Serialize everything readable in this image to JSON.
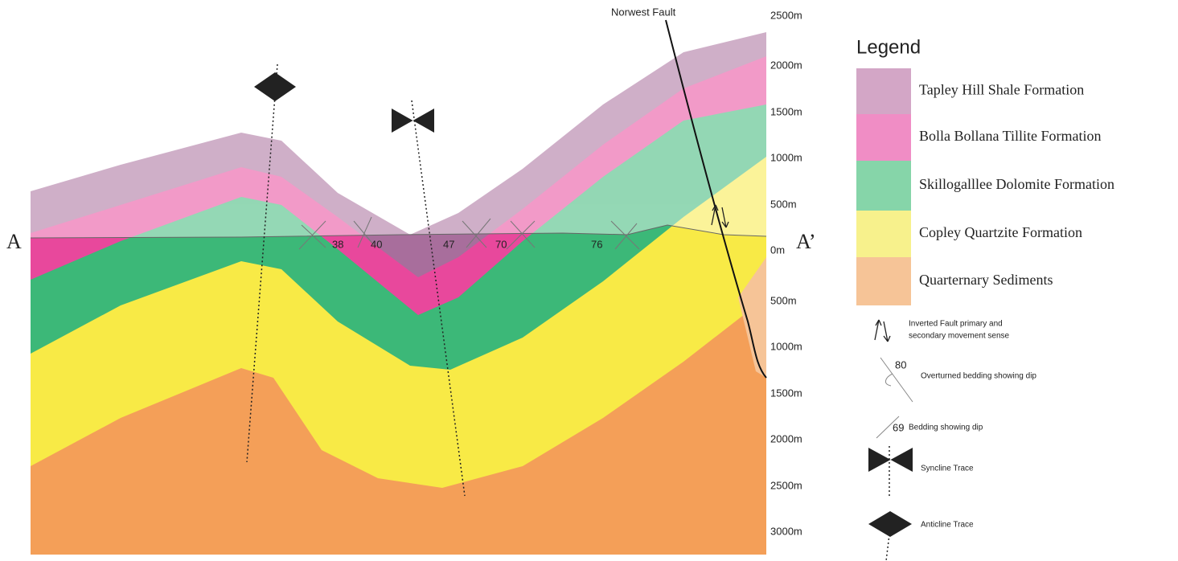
{
  "section": {
    "start_label": "A",
    "end_label": "A’",
    "fault_label": "Norwest Fault",
    "elevation_labels": [
      "2500m",
      "2000m",
      "1500m",
      "1000m",
      "500m",
      "0m",
      "500m",
      "1000m",
      "1500m",
      "2000m",
      "2500m",
      "3000m"
    ],
    "dip_labels": [
      "38",
      "40",
      "47",
      "70",
      "76"
    ]
  },
  "legend": {
    "title": "Legend",
    "units": [
      {
        "label": "Tapley Hill Shale Formation",
        "color": "#d3a6c6"
      },
      {
        "label": "Bolla Bollana Tillite Formation",
        "color": "#f08dc5"
      },
      {
        "label": "Skillogalllee Dolomite Formation",
        "color": "#86d5a9"
      },
      {
        "label": "Copley Quartzite Formation",
        "color": "#f7f18c"
      },
      {
        "label": "Quarternary Sediments",
        "color": "#f6c497"
      }
    ],
    "symbols": {
      "fault": [
        "Inverted Fault primary and",
        "secondary movement sense"
      ],
      "overturned_dip": "80",
      "overturned_label": "Overturned bedding showing dip",
      "bedding_dip": "69",
      "bedding_label": "Bedding showing dip",
      "syncline": "Syncline Trace",
      "anticline": "Anticline Trace"
    }
  }
}
